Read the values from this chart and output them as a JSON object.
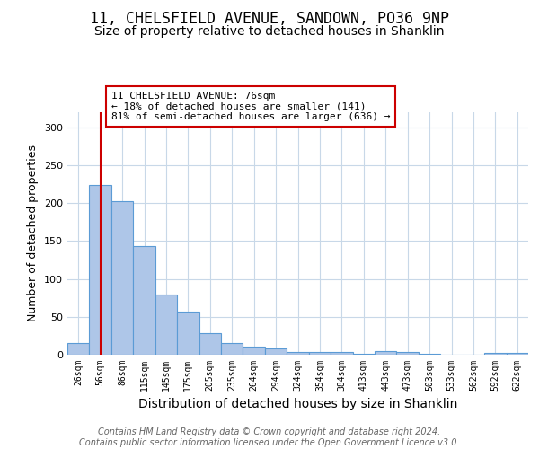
{
  "title1": "11, CHELSFIELD AVENUE, SANDOWN, PO36 9NP",
  "title2": "Size of property relative to detached houses in Shanklin",
  "xlabel": "Distribution of detached houses by size in Shanklin",
  "ylabel": "Number of detached properties",
  "categories": [
    "26sqm",
    "56sqm",
    "86sqm",
    "115sqm",
    "145sqm",
    "175sqm",
    "205sqm",
    "235sqm",
    "264sqm",
    "294sqm",
    "324sqm",
    "354sqm",
    "384sqm",
    "413sqm",
    "443sqm",
    "473sqm",
    "503sqm",
    "533sqm",
    "562sqm",
    "592sqm",
    "622sqm"
  ],
  "values": [
    15,
    224,
    203,
    144,
    80,
    57,
    28,
    15,
    11,
    8,
    4,
    3,
    4,
    1,
    5,
    4,
    1,
    0,
    0,
    2,
    2
  ],
  "bar_color": "#aec6e8",
  "bar_edge_color": "#5b9bd5",
  "vline_x": 1,
  "vline_color": "#cc0000",
  "annotation_text": "11 CHELSFIELD AVENUE: 76sqm\n← 18% of detached houses are smaller (141)\n81% of semi-detached houses are larger (636) →",
  "annotation_box_color": "#ffffff",
  "annotation_box_edge": "#cc0000",
  "ylim": [
    0,
    320
  ],
  "yticks": [
    0,
    50,
    100,
    150,
    200,
    250,
    300
  ],
  "footer": "Contains HM Land Registry data © Crown copyright and database right 2024.\nContains public sector information licensed under the Open Government Licence v3.0.",
  "bg_color": "#ffffff",
  "grid_color": "#c8d8e8",
  "title1_fontsize": 12,
  "title2_fontsize": 10,
  "xlabel_fontsize": 10,
  "ylabel_fontsize": 9,
  "footer_fontsize": 7,
  "annot_fontsize": 8
}
